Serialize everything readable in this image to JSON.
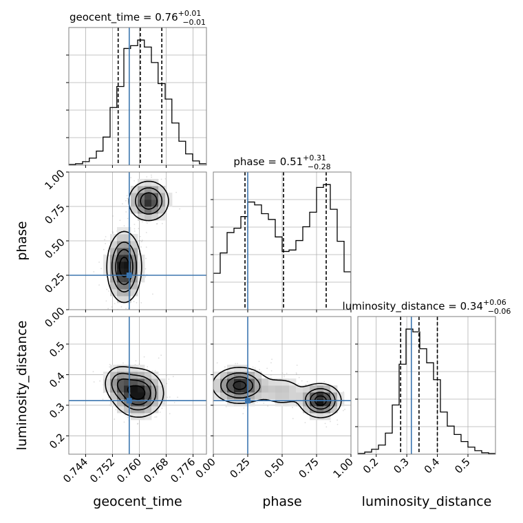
{
  "chart_data": {
    "type": "corner",
    "parameters": [
      "geocent_time",
      "phase",
      "luminosity_distance"
    ],
    "truth_color": "#3b75af",
    "histogram_color": "#000000",
    "panels": {
      "geocent_time": {
        "title": {
          "text": "geocent_time = 0.76",
          "sup": "+0.01",
          "sub": "−0.01"
        },
        "range": [
          0.739,
          0.78
        ],
        "ticks": [
          0.744,
          0.752,
          0.76,
          0.768,
          0.776
        ],
        "tick_labels": [
          "0.744",
          "0.752",
          "0.760",
          "0.768",
          "0.776"
        ],
        "truth": 0.757,
        "quantiles": [
          0.7537,
          0.7603,
          0.7667
        ],
        "hist_bins": [
          0.739,
          0.741,
          0.7431,
          0.7451,
          0.7472,
          0.7492,
          0.7513,
          0.7533,
          0.7554,
          0.7574,
          0.7595,
          0.7615,
          0.7636,
          0.7656,
          0.7677,
          0.7697,
          0.7718,
          0.7738,
          0.7759,
          0.7779,
          0.78
        ],
        "hist_counts": [
          1,
          2,
          5,
          10,
          20,
          40,
          82,
          112,
          166,
          170,
          178,
          168,
          146,
          116,
          94,
          60,
          34,
          16,
          6,
          2
        ]
      },
      "phase": {
        "title": {
          "text": "phase = 0.51",
          "sup": "+0.31",
          "sub": "−0.28"
        },
        "range": [
          0.0,
          1.0
        ],
        "ticks": [
          0.0,
          0.25,
          0.5,
          0.75,
          1.0
        ],
        "tick_labels": [
          "0.00",
          "0.25",
          "0.50",
          "0.75",
          "1.00"
        ],
        "truth": 0.25,
        "quantiles": [
          0.23,
          0.51,
          0.82
        ],
        "hist_bins": [
          0.0,
          0.05,
          0.1,
          0.15,
          0.2,
          0.25,
          0.3,
          0.35,
          0.4,
          0.45,
          0.5,
          0.55,
          0.6,
          0.65,
          0.7,
          0.75,
          0.8,
          0.85,
          0.9,
          0.95,
          1.0
        ],
        "hist_counts": [
          50,
          78,
          106,
          112,
          128,
          148,
          144,
          132,
          124,
          100,
          80,
          82,
          95,
          114,
          134,
          168,
          172,
          138,
          94,
          52
        ]
      },
      "luminosity_distance": {
        "title": {
          "text": "luminosity_distance = 0.34",
          "sup": "+0.06",
          "sub": "−0.06"
        },
        "range": [
          0.14,
          0.59
        ],
        "ticks": [
          0.2,
          0.3,
          0.4,
          0.5
        ],
        "tick_labels": [
          "0.2",
          "0.3",
          "0.4",
          "0.5"
        ],
        "truth": 0.315,
        "quantiles": [
          0.28,
          0.34,
          0.4
        ],
        "hist_bins": [
          0.14,
          0.1625,
          0.185,
          0.2075,
          0.23,
          0.2525,
          0.275,
          0.2975,
          0.32,
          0.3425,
          0.365,
          0.3875,
          0.41,
          0.4325,
          0.455,
          0.4775,
          0.5,
          0.5225,
          0.545,
          0.5675,
          0.59
        ],
        "hist_counts": [
          1,
          3,
          7,
          13,
          30,
          70,
          128,
          178,
          174,
          150,
          130,
          106,
          60,
          40,
          28,
          18,
          10,
          5,
          2,
          1
        ]
      }
    },
    "pairs": [
      {
        "x": "geocent_time",
        "y": "phase",
        "truth": [
          0.757,
          0.25
        ],
        "y_range": [
          0.0,
          1.0
        ],
        "y_ticks": [
          0.25,
          0.5,
          0.75,
          1.0
        ],
        "y_tick_labels": [
          "0.25",
          "0.50",
          "0.75",
          "1.00"
        ],
        "x_tick_label_zero": "",
        "y_tick_zero": "0.00",
        "modes": [
          {
            "cx": 0.7555,
            "cy": 0.31,
            "sx": 0.0026,
            "sy": 0.13,
            "rot": 8,
            "w": 1.0
          },
          {
            "cx": 0.7628,
            "cy": 0.79,
            "sx": 0.0031,
            "sy": 0.075,
            "rot": -5,
            "w": 0.85
          }
        ]
      },
      {
        "x": "geocent_time",
        "y": "luminosity_distance",
        "truth": [
          0.757,
          0.315
        ],
        "y_range": [
          0.14,
          0.59
        ],
        "y_ticks": [
          0.2,
          0.3,
          0.4,
          0.5
        ],
        "y_tick_labels": [
          "0.2",
          "0.3",
          "0.4",
          "0.5"
        ],
        "modes": [
          {
            "cx": 0.7597,
            "cy": 0.34,
            "sx": 0.0038,
            "sy": 0.04,
            "rot": -35,
            "w": 1.0
          },
          {
            "cx": 0.754,
            "cy": 0.375,
            "sx": 0.0025,
            "sy": 0.03,
            "rot": 0,
            "w": 0.45
          }
        ]
      },
      {
        "x": "phase",
        "y": "luminosity_distance",
        "truth": [
          0.25,
          0.315
        ],
        "y_range": [
          0.14,
          0.59
        ],
        "modes": [
          {
            "cx": 0.19,
            "cy": 0.365,
            "sx": 0.1,
            "sy": 0.03,
            "rot": 0,
            "w": 0.95
          },
          {
            "cx": 0.78,
            "cy": 0.315,
            "sx": 0.075,
            "sy": 0.028,
            "rot": 0,
            "w": 1.0
          },
          {
            "cx": 0.5,
            "cy": 0.345,
            "sx": 0.1,
            "sy": 0.03,
            "rot": 0,
            "w": 0.28
          }
        ]
      }
    ],
    "xlabels": [
      "geocent_time",
      "phase",
      "luminosity_distance"
    ],
    "ylabels": [
      "phase",
      "luminosity_distance"
    ]
  }
}
